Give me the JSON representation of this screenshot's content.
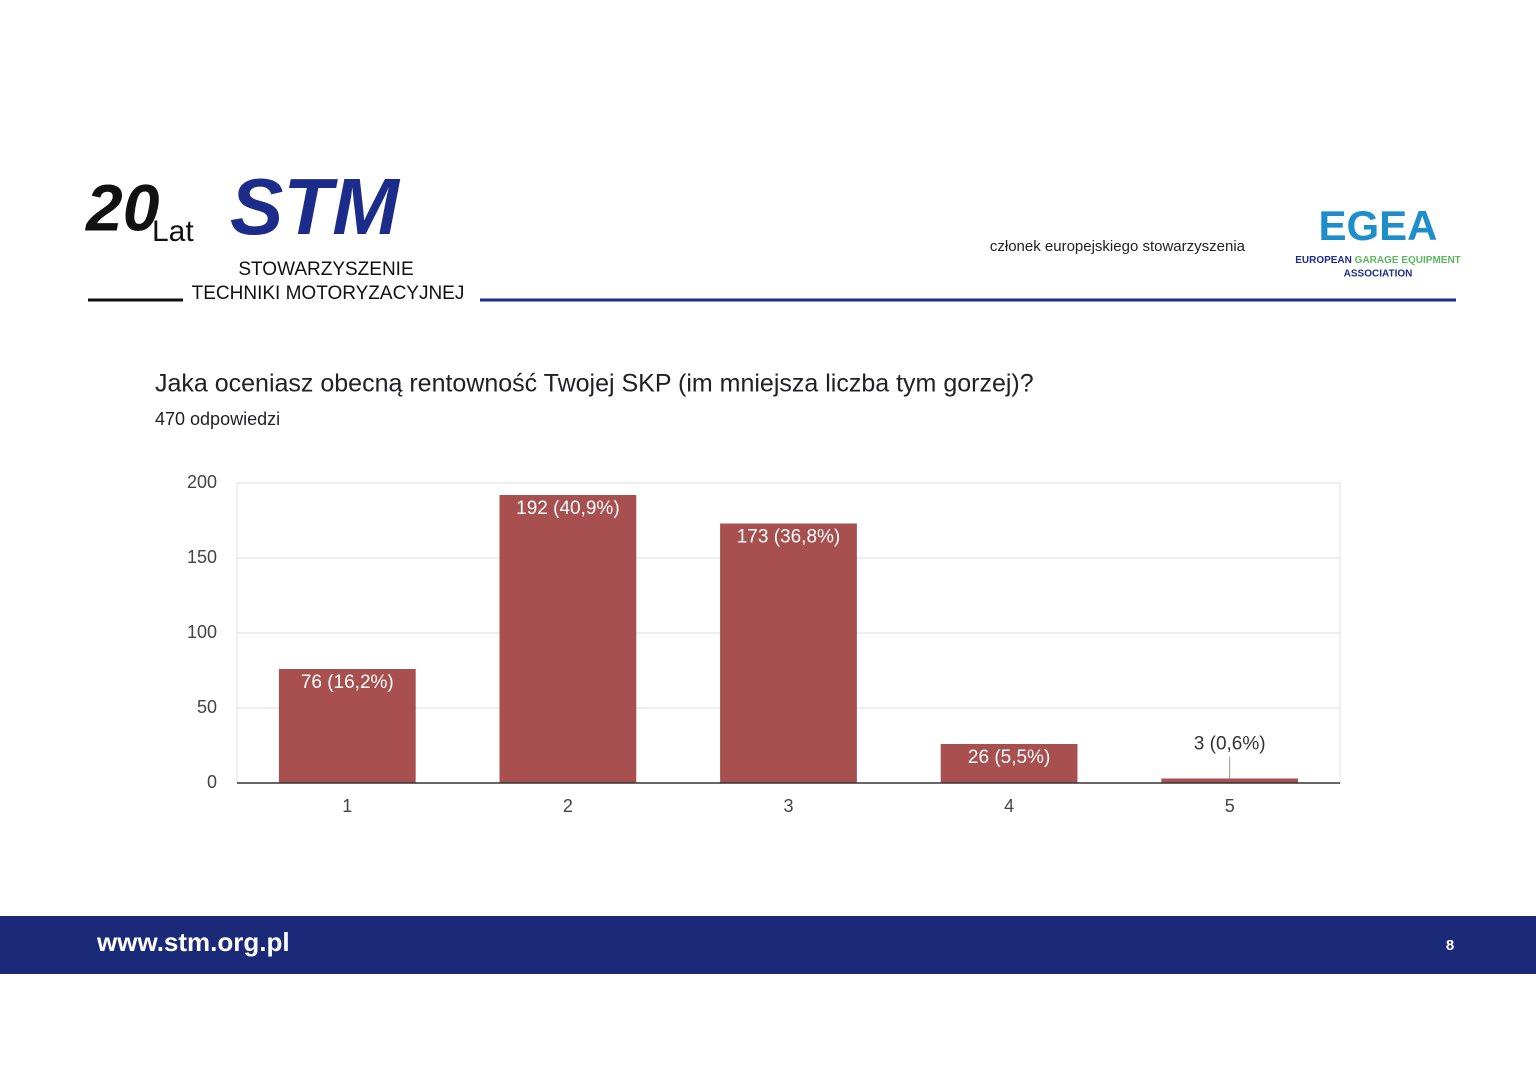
{
  "header": {
    "logo_number": "20",
    "logo_lat": "Lat",
    "logo_brand": "STM",
    "logo_line1": "STOWARZYSZENIE",
    "logo_line2": "TECHNIKI MOTORYZACYJNEJ",
    "member_text": "członek europejskiego stowarzyszenia",
    "egea": "EGEA",
    "egea_line1a": "EUROPEAN",
    "egea_line1b": "GARAGE EQUIPMENT",
    "egea_line2": "ASSOCIATION"
  },
  "chart_data": {
    "type": "bar",
    "title": "Jaka oceniasz obecną rentowność Twojej SKP (im mniejsza liczba tym gorzej)?",
    "subtitle": "470 odpowiedzi",
    "categories": [
      "1",
      "2",
      "3",
      "4",
      "5"
    ],
    "values": [
      76,
      192,
      173,
      26,
      3
    ],
    "value_labels": [
      "76 (16,2%)",
      "192 (40,9%)",
      "173 (36,8%)",
      "26 (5,5%)",
      "3 (0,6%)"
    ],
    "color": "#a84f4f",
    "ylim": [
      0,
      200
    ],
    "yticks": [
      0,
      50,
      100,
      150,
      200
    ],
    "grid": true
  },
  "footer": {
    "url": "www.stm.org.pl",
    "page": "8"
  }
}
